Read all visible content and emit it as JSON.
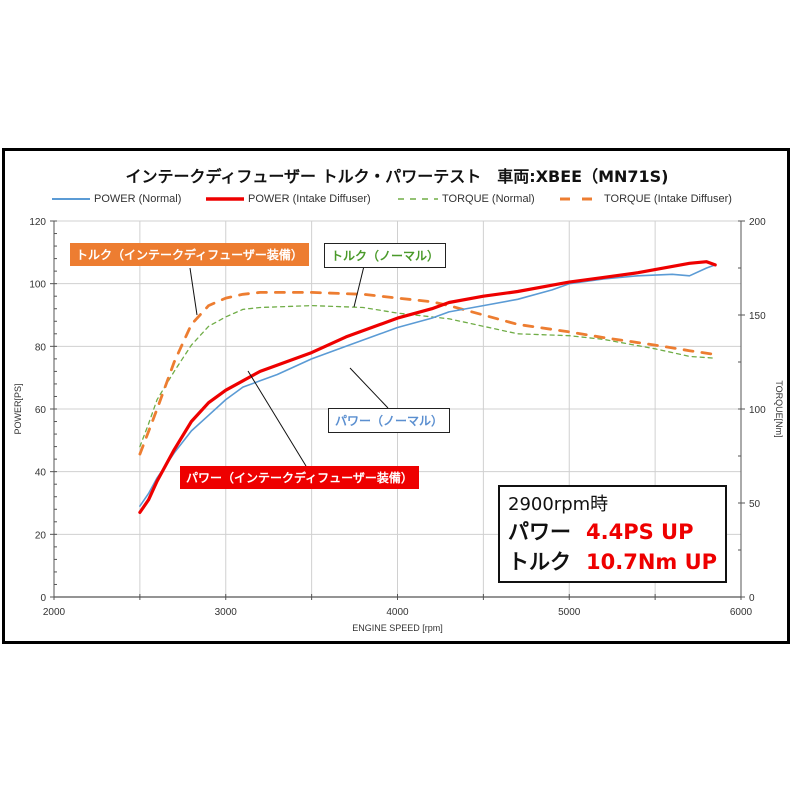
{
  "chart_data": {
    "type": "line",
    "title": "インテークディフューザー トルク・パワーテスト　車両:XBEE（MN71S)",
    "xlabel": "ENGINE SPEED [rpm]",
    "ylabel": "POWER[PS]",
    "y2label": "TORQUE[Nm]",
    "xlim": [
      2000,
      6000
    ],
    "ylim": [
      0,
      120
    ],
    "y2lim": [
      0,
      200
    ],
    "xticks": [
      2000,
      3000,
      4000,
      5000,
      6000
    ],
    "yticks": [
      0,
      20,
      40,
      60,
      80,
      100,
      120
    ],
    "y2ticks": [
      0,
      50,
      100,
      150,
      200
    ],
    "grid": true,
    "legend_position": "top",
    "series": [
      {
        "name": "POWER (Normal)",
        "axis": "left",
        "color": "#5b9bd5",
        "style": "solid",
        "x": [
          2500,
          2550,
          2600,
          2700,
          2800,
          2900,
          3000,
          3100,
          3200,
          3300,
          3500,
          3700,
          3900,
          4000,
          4200,
          4300,
          4500,
          4700,
          4900,
          5000,
          5200,
          5400,
          5600,
          5700,
          5800,
          5850
        ],
        "y": [
          29,
          33,
          38,
          46,
          53,
          58,
          63,
          67,
          69,
          71,
          76,
          80,
          84,
          86,
          89,
          91,
          93,
          95,
          98,
          100,
          101.5,
          102.5,
          103,
          102.5,
          105,
          106
        ]
      },
      {
        "name": "POWER (Intake Diffuser)",
        "axis": "left",
        "color": "#ee0000",
        "style": "solid",
        "x": [
          2500,
          2550,
          2600,
          2700,
          2800,
          2900,
          3000,
          3100,
          3200,
          3300,
          3500,
          3700,
          3900,
          4000,
          4200,
          4300,
          4500,
          4700,
          4900,
          5000,
          5200,
          5400,
          5600,
          5700,
          5800,
          5850
        ],
        "y": [
          27,
          31,
          37,
          47,
          56,
          62,
          66,
          69,
          72,
          74,
          78,
          83,
          87,
          89,
          92,
          94,
          96,
          97.5,
          99.5,
          100.5,
          102,
          103.5,
          105.5,
          106.5,
          107,
          106
        ]
      },
      {
        "name": "TORQUE (Normal)",
        "axis": "right",
        "color": "#70ad47",
        "style": "dashed",
        "x": [
          2500,
          2550,
          2600,
          2700,
          2800,
          2900,
          3000,
          3100,
          3200,
          3500,
          3800,
          4000,
          4200,
          4300,
          4500,
          4700,
          5000,
          5200,
          5500,
          5700,
          5850
        ],
        "y": [
          80,
          92,
          105,
          120,
          134,
          144,
          149,
          153,
          154,
          155,
          154,
          151,
          149,
          148,
          144,
          140,
          139,
          137,
          132,
          128,
          127
        ]
      },
      {
        "name": "TORQUE (Intake Diffuser)",
        "axis": "right",
        "color": "#ed7d31",
        "style": "dashed",
        "x": [
          2500,
          2550,
          2600,
          2700,
          2800,
          2900,
          3000,
          3100,
          3200,
          3500,
          3800,
          4000,
          4200,
          4300,
          4500,
          4700,
          5000,
          5200,
          5500,
          5700,
          5850
        ],
        "y": [
          76,
          88,
          100,
          125,
          145,
          155,
          159,
          161,
          162,
          162,
          161,
          159,
          157,
          155,
          150,
          145,
          141,
          138,
          134,
          131,
          129
        ]
      }
    ],
    "annotations": [
      {
        "text": "トルク（インテークディフューザー装備）",
        "series": "TORQUE (Intake Diffuser)"
      },
      {
        "text": "トルク（ノーマル）",
        "series": "TORQUE (Normal)"
      },
      {
        "text": "パワー（ノーマル）",
        "series": "POWER (Normal)"
      },
      {
        "text": "パワー（インテークディフューザー装備）",
        "series": "POWER (Intake Diffuser)"
      }
    ]
  },
  "labels": {
    "title": "インテークディフューザー トルク・パワーテスト　車両:XBEE（MN71S)",
    "legend": [
      "POWER (Normal)",
      "POWER (Intake Diffuser)",
      "TORQUE (Normal)",
      "TORQUE (Intake Diffuser)"
    ],
    "xlabel": "ENGINE SPEED [rpm]",
    "ylabel": "POWER[PS]",
    "y2label": "TORQUE[Nm]",
    "xticks": [
      "2000",
      "3000",
      "4000",
      "5000",
      "6000"
    ],
    "yticks": [
      "0",
      "20",
      "40",
      "60",
      "80",
      "100",
      "120"
    ],
    "y2ticks": [
      "0",
      "50",
      "100",
      "150",
      "200"
    ],
    "callout_torque_diffuser": "トルク（インテークディフューザー装備）",
    "callout_torque_normal": "トルク（ノーマル）",
    "callout_power_normal": "パワー（ノーマル）",
    "callout_power_diffuser": "パワー（インテークディフューザー装備）"
  },
  "summary": {
    "condition": "2900rpm時",
    "power_key": "パワー",
    "power_value": "4.4PS UP",
    "torque_key": "トルク",
    "torque_value": "10.7Nm UP"
  }
}
